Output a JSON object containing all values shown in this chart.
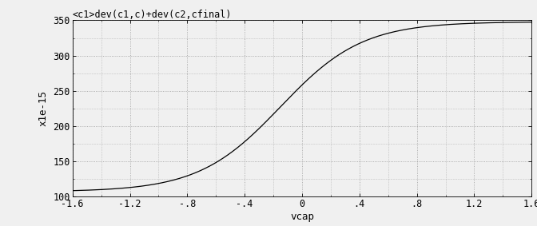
{
  "title": "<c1>dev(c1,c)+dev(c2,cfinal)",
  "xlabel": "vcap",
  "ylabel": "x1e-15",
  "xlim": [
    -1.6,
    1.6
  ],
  "ylim": [
    100,
    350
  ],
  "yticks": [
    100,
    150,
    200,
    250,
    300,
    350
  ],
  "xticks": [
    -1.6,
    -1.2,
    -0.8,
    -0.4,
    0.0,
    0.4,
    0.8,
    1.2,
    1.6
  ],
  "xtick_labels": [
    "-1.6",
    "-1.2",
    "-.8",
    "-.4",
    "0",
    ".4",
    ".8",
    "1.2",
    "1.6"
  ],
  "bg_color": "#f0f0f0",
  "line_color": "#000000",
  "grid_color": "#999999",
  "c_min": 107.0,
  "c_max": 348.0,
  "v0": -0.15,
  "slope": 3.5
}
